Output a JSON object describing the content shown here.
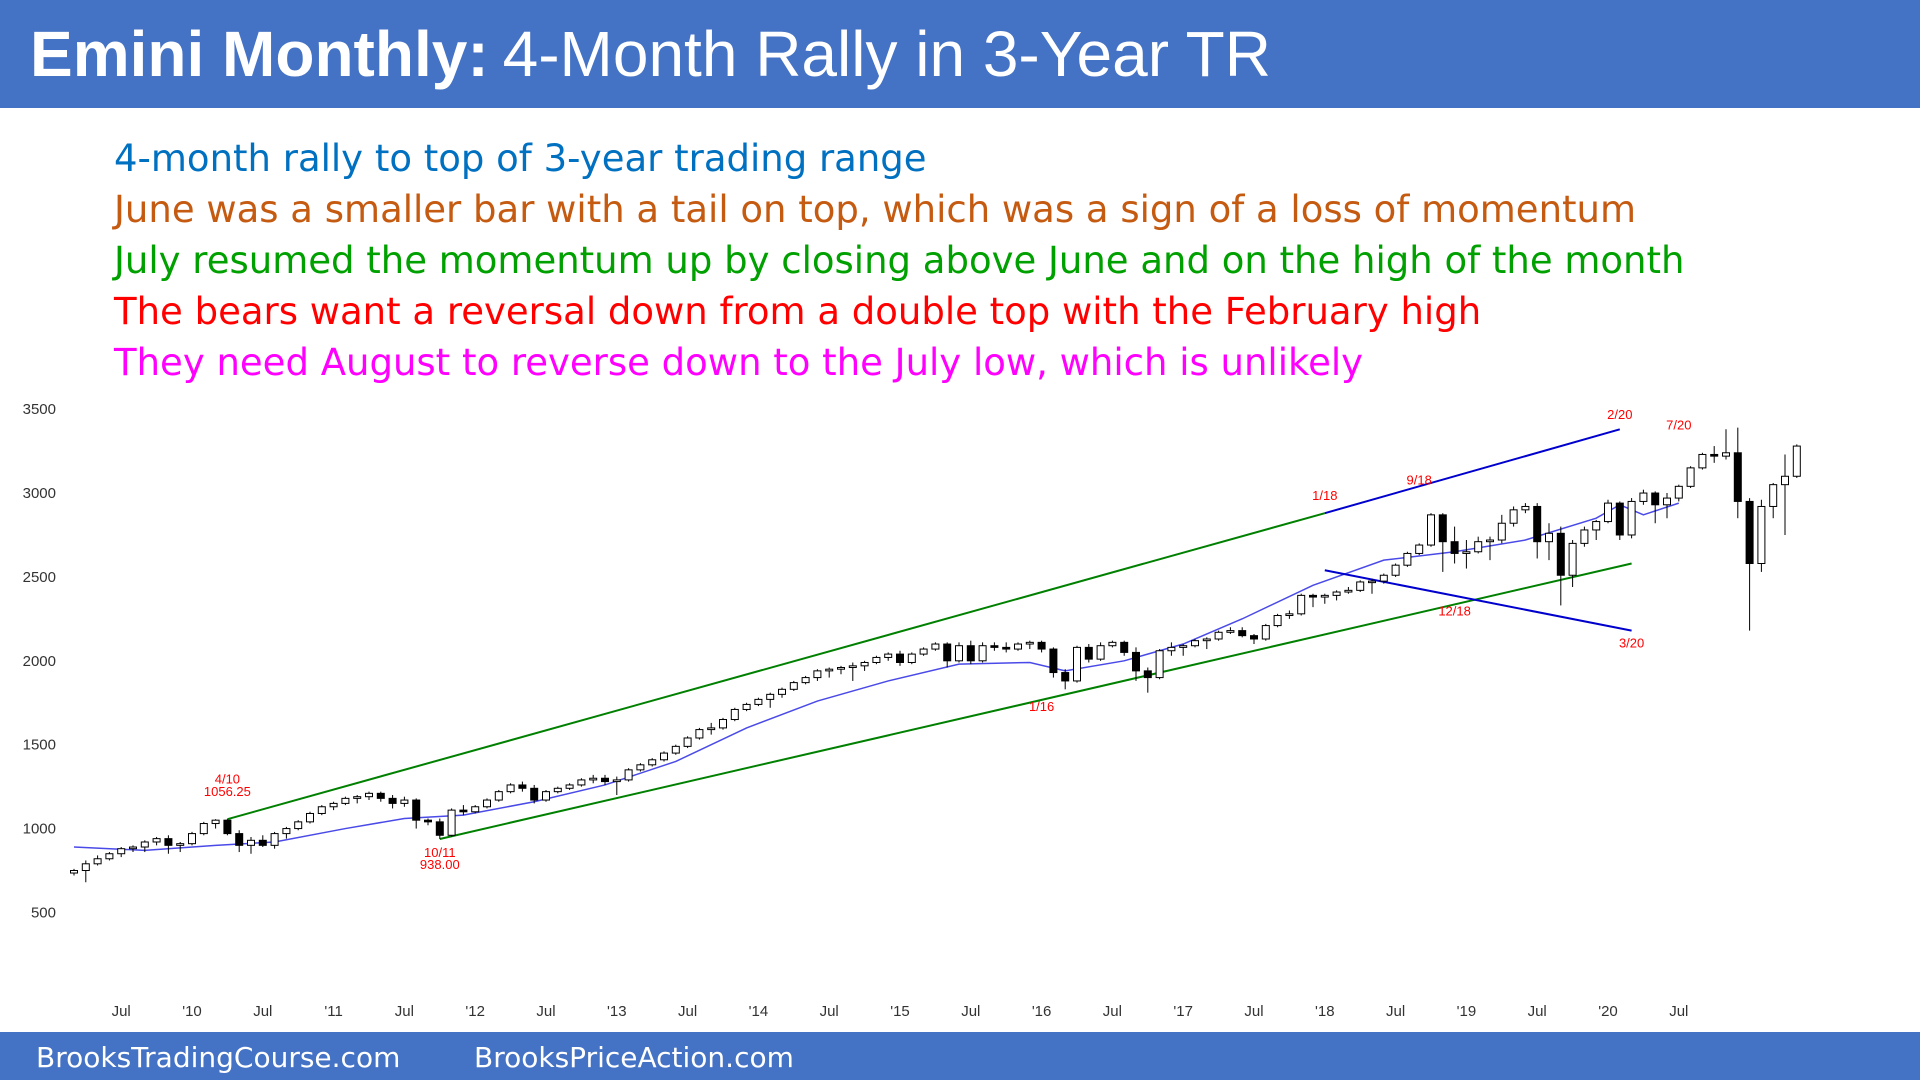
{
  "title": {
    "bold": "Emini Monthly:",
    "rest": "4-Month Rally in 3-Year TR"
  },
  "notes": [
    {
      "text": "4-month rally to top of 3-year trading range",
      "color": "#0070C0"
    },
    {
      "text": "June was a smaller bar with a tail on top, which was a sign of a loss of momentum",
      "color": "#C55A11"
    },
    {
      "text": "July resumed the momentum up by closing above June and on the high of the month",
      "color": "#00A000"
    },
    {
      "text": "The bears want a reversal down from a double top with the February high",
      "color": "#FF0000"
    },
    {
      "text": "They need August to reverse down to the July low, which is unlikely",
      "color": "#FF00FF"
    }
  ],
  "footer": {
    "left": "BrooksTradingCourse.com",
    "right": "BrooksPriceAction.com"
  },
  "chart_data": {
    "type": "candlestick",
    "title": "",
    "ylim": [
      300,
      3650
    ],
    "y_ticks": [
      500,
      1000,
      1500,
      2000,
      2500,
      3000,
      3500
    ],
    "x_ticks": [
      "Jul",
      "'10",
      "Jul",
      "'11",
      "Jul",
      "'12",
      "Jul",
      "'13",
      "Jul",
      "'14",
      "Jul",
      "'15",
      "Jul",
      "'16",
      "Jul",
      "'17",
      "Jul",
      "'18",
      "Jul",
      "'19",
      "Jul",
      "'20",
      "Jul"
    ],
    "start": "2009-03",
    "colors": {
      "up": "#ffffff",
      "down": "#000000",
      "ema": "#4a4ae8",
      "channel": "#008000",
      "wedge": "#0000CD",
      "label": "#FF0000"
    },
    "candles": [
      [
        735,
        760,
        720,
        750
      ],
      [
        750,
        810,
        680,
        790
      ],
      [
        790,
        840,
        780,
        820
      ],
      [
        820,
        860,
        810,
        850
      ],
      [
        850,
        890,
        830,
        880
      ],
      [
        880,
        900,
        860,
        890
      ],
      [
        890,
        930,
        860,
        920
      ],
      [
        920,
        950,
        900,
        940
      ],
      [
        940,
        960,
        850,
        900
      ],
      [
        900,
        920,
        860,
        910
      ],
      [
        910,
        980,
        900,
        970
      ],
      [
        970,
        1040,
        960,
        1030
      ],
      [
        1030,
        1056,
        1000,
        1050
      ],
      [
        1050,
        1056,
        960,
        970
      ],
      [
        970,
        990,
        860,
        900
      ],
      [
        900,
        950,
        850,
        930
      ],
      [
        930,
        960,
        890,
        900
      ],
      [
        900,
        980,
        880,
        970
      ],
      [
        970,
        1010,
        940,
        1000
      ],
      [
        1000,
        1050,
        990,
        1040
      ],
      [
        1040,
        1100,
        1030,
        1090
      ],
      [
        1090,
        1140,
        1080,
        1130
      ],
      [
        1130,
        1160,
        1110,
        1150
      ],
      [
        1150,
        1190,
        1140,
        1180
      ],
      [
        1180,
        1200,
        1150,
        1190
      ],
      [
        1190,
        1220,
        1170,
        1210
      ],
      [
        1210,
        1220,
        1160,
        1180
      ],
      [
        1180,
        1200,
        1120,
        1150
      ],
      [
        1150,
        1190,
        1130,
        1170
      ],
      [
        1170,
        1180,
        1000,
        1050
      ],
      [
        1050,
        1060,
        1020,
        1040
      ],
      [
        1040,
        1060,
        938,
        960
      ],
      [
        960,
        1120,
        950,
        1110
      ],
      [
        1110,
        1140,
        1080,
        1100
      ],
      [
        1100,
        1140,
        1090,
        1130
      ],
      [
        1130,
        1180,
        1120,
        1170
      ],
      [
        1170,
        1230,
        1160,
        1220
      ],
      [
        1220,
        1270,
        1210,
        1260
      ],
      [
        1260,
        1280,
        1220,
        1240
      ],
      [
        1240,
        1260,
        1150,
        1170
      ],
      [
        1170,
        1230,
        1160,
        1220
      ],
      [
        1220,
        1250,
        1210,
        1240
      ],
      [
        1240,
        1270,
        1230,
        1260
      ],
      [
        1260,
        1300,
        1250,
        1290
      ],
      [
        1290,
        1320,
        1270,
        1300
      ],
      [
        1300,
        1320,
        1260,
        1280
      ],
      [
        1280,
        1310,
        1200,
        1290
      ],
      [
        1290,
        1360,
        1280,
        1350
      ],
      [
        1350,
        1390,
        1340,
        1380
      ],
      [
        1380,
        1420,
        1370,
        1410
      ],
      [
        1410,
        1460,
        1400,
        1450
      ],
      [
        1450,
        1500,
        1440,
        1490
      ],
      [
        1490,
        1550,
        1480,
        1540
      ],
      [
        1540,
        1600,
        1530,
        1590
      ],
      [
        1590,
        1630,
        1560,
        1600
      ],
      [
        1600,
        1660,
        1590,
        1650
      ],
      [
        1650,
        1720,
        1640,
        1710
      ],
      [
        1710,
        1750,
        1700,
        1740
      ],
      [
        1740,
        1780,
        1730,
        1770
      ],
      [
        1770,
        1810,
        1720,
        1800
      ],
      [
        1800,
        1840,
        1780,
        1830
      ],
      [
        1830,
        1880,
        1820,
        1870
      ],
      [
        1870,
        1910,
        1860,
        1900
      ],
      [
        1900,
        1950,
        1880,
        1940
      ],
      [
        1940,
        1960,
        1900,
        1950
      ],
      [
        1950,
        1970,
        1920,
        1960
      ],
      [
        1960,
        1990,
        1880,
        1970
      ],
      [
        1970,
        2000,
        1940,
        1990
      ],
      [
        1990,
        2030,
        1980,
        2020
      ],
      [
        2020,
        2050,
        2000,
        2040
      ],
      [
        2040,
        2060,
        1970,
        1990
      ],
      [
        1990,
        2050,
        1980,
        2040
      ],
      [
        2040,
        2080,
        2030,
        2070
      ],
      [
        2070,
        2110,
        2060,
        2100
      ],
      [
        2100,
        2110,
        1960,
        2000
      ],
      [
        2000,
        2110,
        1990,
        2090
      ],
      [
        2090,
        2120,
        1980,
        2000
      ],
      [
        2000,
        2110,
        1990,
        2090
      ],
      [
        2090,
        2110,
        2060,
        2080
      ],
      [
        2080,
        2110,
        2050,
        2070
      ],
      [
        2070,
        2110,
        2060,
        2100
      ],
      [
        2100,
        2120,
        2070,
        2110
      ],
      [
        2110,
        2120,
        2050,
        2070
      ],
      [
        2070,
        2080,
        1900,
        1930
      ],
      [
        1930,
        1950,
        1830,
        1880
      ],
      [
        1880,
        2090,
        1870,
        2080
      ],
      [
        2080,
        2100,
        1990,
        2010
      ],
      [
        2010,
        2110,
        2000,
        2090
      ],
      [
        2090,
        2120,
        2080,
        2110
      ],
      [
        2110,
        2120,
        2030,
        2050
      ],
      [
        2050,
        2080,
        1880,
        1940
      ],
      [
        1940,
        1960,
        1810,
        1900
      ],
      [
        1900,
        2070,
        1890,
        2060
      ],
      [
        2060,
        2110,
        2030,
        2080
      ],
      [
        2080,
        2100,
        2030,
        2090
      ],
      [
        2090,
        2130,
        2080,
        2120
      ],
      [
        2120,
        2140,
        2070,
        2130
      ],
      [
        2130,
        2180,
        2120,
        2170
      ],
      [
        2170,
        2200,
        2160,
        2180
      ],
      [
        2180,
        2200,
        2140,
        2150
      ],
      [
        2150,
        2160,
        2100,
        2130
      ],
      [
        2130,
        2220,
        2120,
        2210
      ],
      [
        2210,
        2280,
        2200,
        2270
      ],
      [
        2270,
        2300,
        2250,
        2280
      ],
      [
        2280,
        2400,
        2270,
        2390
      ],
      [
        2390,
        2400,
        2320,
        2380
      ],
      [
        2380,
        2400,
        2340,
        2390
      ],
      [
        2390,
        2420,
        2360,
        2410
      ],
      [
        2410,
        2440,
        2400,
        2420
      ],
      [
        2420,
        2480,
        2410,
        2470
      ],
      [
        2470,
        2490,
        2400,
        2475
      ],
      [
        2475,
        2520,
        2460,
        2510
      ],
      [
        2510,
        2580,
        2500,
        2570
      ],
      [
        2570,
        2650,
        2560,
        2640
      ],
      [
        2640,
        2700,
        2630,
        2690
      ],
      [
        2690,
        2880,
        2680,
        2870
      ],
      [
        2870,
        2880,
        2530,
        2710
      ],
      [
        2710,
        2800,
        2580,
        2640
      ],
      [
        2640,
        2720,
        2550,
        2650
      ],
      [
        2650,
        2740,
        2640,
        2710
      ],
      [
        2710,
        2740,
        2600,
        2720
      ],
      [
        2720,
        2870,
        2700,
        2820
      ],
      [
        2820,
        2920,
        2800,
        2900
      ],
      [
        2900,
        2940,
        2880,
        2920
      ],
      [
        2920,
        2940,
        2610,
        2710
      ],
      [
        2710,
        2820,
        2600,
        2760
      ],
      [
        2760,
        2800,
        2330,
        2510
      ],
      [
        2510,
        2720,
        2440,
        2700
      ],
      [
        2700,
        2800,
        2680,
        2780
      ],
      [
        2780,
        2840,
        2720,
        2830
      ],
      [
        2830,
        2960,
        2820,
        2940
      ],
      [
        2940,
        2950,
        2720,
        2750
      ],
      [
        2750,
        2970,
        2730,
        2950
      ],
      [
        2950,
        3020,
        2930,
        3000
      ],
      [
        3000,
        3010,
        2820,
        2930
      ],
      [
        2930,
        3000,
        2850,
        2970
      ],
      [
        2970,
        3050,
        2950,
        3040
      ],
      [
        3040,
        3160,
        3030,
        3150
      ],
      [
        3150,
        3240,
        3140,
        3230
      ],
      [
        3230,
        3280,
        3180,
        3220
      ],
      [
        3220,
        3380,
        3200,
        3240
      ],
      [
        3240,
        3390,
        2850,
        2950
      ],
      [
        2950,
        2970,
        2180,
        2580
      ],
      [
        2580,
        2960,
        2530,
        2920
      ],
      [
        2920,
        3060,
        2850,
        3050
      ],
      [
        3050,
        3230,
        2750,
        3100
      ],
      [
        3100,
        3290,
        3090,
        3280
      ]
    ],
    "labels": [
      {
        "text": "4/10",
        "x": "2010-04",
        "y": 1270
      },
      {
        "text": "1056.25",
        "x": "2010-04",
        "y": 1195
      },
      {
        "text": "10/11",
        "x": "2011-10",
        "y": 830
      },
      {
        "text": "938.00",
        "x": "2011-10",
        "y": 760
      },
      {
        "text": "1/16",
        "x": "2016-01",
        "y": 1700
      },
      {
        "text": "1/18",
        "x": "2018-01",
        "y": 2960
      },
      {
        "text": "9/18",
        "x": "2018-09",
        "y": 3050
      },
      {
        "text": "12/18",
        "x": "2018-12",
        "y": 2270
      },
      {
        "text": "2/20",
        "x": "2020-02",
        "y": 3440
      },
      {
        "text": "3/20",
        "x": "2020-03",
        "y": 2080
      },
      {
        "text": "7/20",
        "x": "2020-07",
        "y": 3380
      }
    ],
    "channel_lines": [
      {
        "from": [
          "2010-04",
          1056
        ],
        "to": [
          "2018-01",
          2880
        ]
      },
      {
        "from": [
          "2011-10",
          938
        ],
        "to": [
          "2020-03",
          2580
        ]
      }
    ],
    "wedge_lines": [
      {
        "from": [
          "2018-01",
          2880
        ],
        "to": [
          "2020-02",
          3380
        ]
      },
      {
        "from": [
          "2018-01",
          2540
        ],
        "to": [
          "2020-03",
          2180
        ]
      }
    ],
    "ema_series": [
      [
        "2009-03",
        890
      ],
      [
        "2009-09",
        870
      ],
      [
        "2010-03",
        900
      ],
      [
        "2010-08",
        920
      ],
      [
        "2011-02",
        1000
      ],
      [
        "2011-07",
        1060
      ],
      [
        "2011-12",
        1080
      ],
      [
        "2012-06",
        1160
      ],
      [
        "2012-12",
        1260
      ],
      [
        "2013-06",
        1400
      ],
      [
        "2013-12",
        1600
      ],
      [
        "2014-06",
        1760
      ],
      [
        "2014-12",
        1880
      ],
      [
        "2015-06",
        1980
      ],
      [
        "2015-12",
        1990
      ],
      [
        "2016-03",
        1940
      ],
      [
        "2016-08",
        2000
      ],
      [
        "2017-01",
        2100
      ],
      [
        "2017-06",
        2250
      ],
      [
        "2017-12",
        2450
      ],
      [
        "2018-06",
        2600
      ],
      [
        "2018-12",
        2650
      ],
      [
        "2019-06",
        2720
      ],
      [
        "2019-12",
        2850
      ],
      [
        "2020-02",
        2930
      ],
      [
        "2020-04",
        2870
      ],
      [
        "2020-07",
        2940
      ]
    ]
  }
}
